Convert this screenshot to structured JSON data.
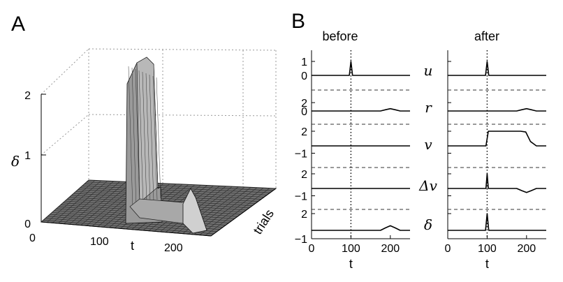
{
  "chart_data": [
    {
      "panel": "A",
      "type": "surface3d",
      "xlabel": "t",
      "ylabel": "trials",
      "zlabel": "δ",
      "x_ticks": [
        "0",
        "100",
        "200"
      ],
      "z_ticks": [
        "0",
        "1",
        "2"
      ],
      "xlim": [
        0,
        250
      ],
      "zlim": [
        0,
        2
      ],
      "features": [
        {
          "description": "ridge",
          "t": 100,
          "peak_z": 2.5,
          "at_trials": "front"
        },
        {
          "description": "ridge",
          "t": 200,
          "peak_z": 0.45,
          "at_trials": "back"
        }
      ],
      "grid": true
    },
    {
      "panel": "B",
      "type": "line",
      "columns": [
        "before",
        "after"
      ],
      "xlabel": "t",
      "x_ticks": [
        "0",
        "100",
        "200"
      ],
      "xlim": [
        0,
        250
      ],
      "vline_x": 100,
      "rows": [
        {
          "name": "u",
          "y_ticks": [
            "1",
            "0"
          ],
          "ylim": [
            0,
            1.2
          ]
        },
        {
          "name": "r",
          "y_ticks": [
            "2",
            "0"
          ],
          "ylim": [
            0,
            2
          ]
        },
        {
          "name": "v",
          "y_ticks": [
            "2",
            "−1"
          ],
          "ylim": [
            -1,
            2
          ]
        },
        {
          "name": "Δv",
          "y_ticks": [
            "2",
            "−1"
          ],
          "ylim": [
            -1,
            2
          ]
        },
        {
          "name": "δ",
          "y_ticks": [
            "2",
            "−1"
          ],
          "ylim": [
            -1,
            2
          ]
        }
      ],
      "series": [
        {
          "column": "before",
          "row": "u",
          "x": [
            0,
            96,
            100,
            104,
            250
          ],
          "y": [
            0,
            0,
            1,
            0,
            0
          ]
        },
        {
          "column": "before",
          "row": "r",
          "x": [
            0,
            175,
            188,
            200,
            212,
            225,
            250
          ],
          "y": [
            0,
            0,
            0.3,
            0.55,
            0.3,
            0,
            0
          ]
        },
        {
          "column": "before",
          "row": "v",
          "x": [
            0,
            250
          ],
          "y": [
            0,
            0
          ]
        },
        {
          "column": "before",
          "row": "Δv",
          "x": [
            0,
            250
          ],
          "y": [
            0,
            0
          ]
        },
        {
          "column": "before",
          "row": "δ",
          "x": [
            0,
            175,
            188,
            200,
            212,
            225,
            250
          ],
          "y": [
            0,
            0,
            0.3,
            0.55,
            0.3,
            0,
            0
          ]
        },
        {
          "column": "after",
          "row": "u",
          "x": [
            0,
            96,
            100,
            104,
            250
          ],
          "y": [
            0,
            0,
            1,
            0,
            0
          ]
        },
        {
          "column": "after",
          "row": "r",
          "x": [
            0,
            175,
            188,
            200,
            212,
            225,
            250
          ],
          "y": [
            0,
            0,
            0.3,
            0.55,
            0.3,
            0,
            0
          ]
        },
        {
          "column": "after",
          "row": "v",
          "x": [
            0,
            97,
            103,
            185,
            198,
            210,
            225,
            250
          ],
          "y": [
            0,
            0,
            2,
            2,
            1.9,
            0.6,
            0,
            0
          ]
        },
        {
          "column": "after",
          "row": "Δv",
          "x": [
            0,
            97,
            100,
            103,
            175,
            188,
            200,
            212,
            225,
            250
          ],
          "y": [
            0,
            0,
            2,
            0,
            0,
            -0.3,
            -0.55,
            -0.3,
            0,
            0
          ]
        },
        {
          "column": "after",
          "row": "δ",
          "x": [
            0,
            96,
            100,
            104,
            250
          ],
          "y": [
            0,
            0,
            2,
            0,
            0
          ]
        }
      ]
    }
  ]
}
